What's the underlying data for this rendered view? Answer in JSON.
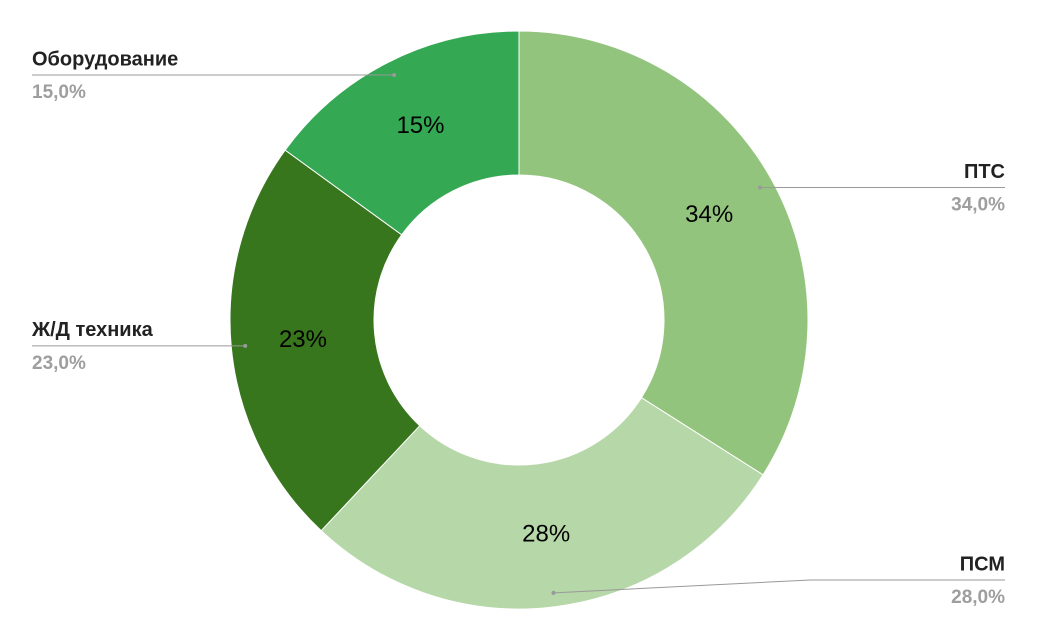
{
  "chart_data": {
    "type": "donut",
    "categories": [
      "ПТС",
      "ПСМ",
      "Ж/Д техника",
      "Оборудование"
    ],
    "values": [
      34,
      28,
      23,
      15
    ],
    "value_labels": [
      "34%",
      "28%",
      "23%",
      "15%"
    ],
    "percent_labels": [
      "34,0%",
      "28,0%",
      "23,0%",
      "15,0%"
    ],
    "colors": [
      "#93c47d",
      "#b6d7a8",
      "#38761d",
      "#34a853"
    ]
  }
}
